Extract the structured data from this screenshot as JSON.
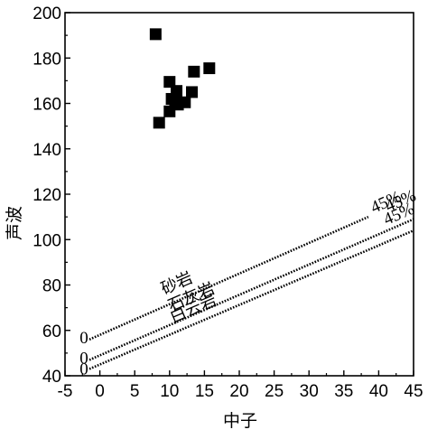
{
  "chart_data": {
    "type": "scatter",
    "xlabel": "中子",
    "ylabel": "声波",
    "xlim": [
      -5,
      45
    ],
    "ylim": [
      40,
      200
    ],
    "x_ticks": [
      "-5",
      "0",
      "5",
      "10",
      "15",
      "20",
      "25",
      "30",
      "35",
      "40",
      "45"
    ],
    "y_ticks": [
      "40",
      "60",
      "80",
      "100",
      "120",
      "140",
      "160",
      "180",
      "200"
    ],
    "grid": false,
    "marker_color": "#000000",
    "points": [
      {
        "x": 8.0,
        "y": 190.5
      },
      {
        "x": 8.5,
        "y": 151.5
      },
      {
        "x": 10.0,
        "y": 169.5
      },
      {
        "x": 10.0,
        "y": 156.5
      },
      {
        "x": 10.3,
        "y": 162.0
      },
      {
        "x": 10.8,
        "y": 160.5
      },
      {
        "x": 11.0,
        "y": 165.5
      },
      {
        "x": 11.2,
        "y": 159.5
      },
      {
        "x": 12.2,
        "y": 160.5
      },
      {
        "x": 13.2,
        "y": 165.0
      },
      {
        "x": 13.5,
        "y": 174.0
      },
      {
        "x": 15.7,
        "y": 175.5
      }
    ],
    "lithology_lines": [
      {
        "name": "砂岩",
        "start_label": "0",
        "end_label": "45%",
        "x": [
          -1.5,
          38.5
        ],
        "y": [
          56,
          110
        ]
      },
      {
        "name": "石灰岩",
        "start_label": "0",
        "end_label": "45%",
        "x": [
          -1.5,
          45
        ],
        "y": [
          47,
          109
        ]
      },
      {
        "name": "白云岩",
        "start_label": "0",
        "end_label": "45%",
        "x": [
          -1.5,
          45
        ],
        "y": [
          43,
          104
        ]
      }
    ]
  }
}
